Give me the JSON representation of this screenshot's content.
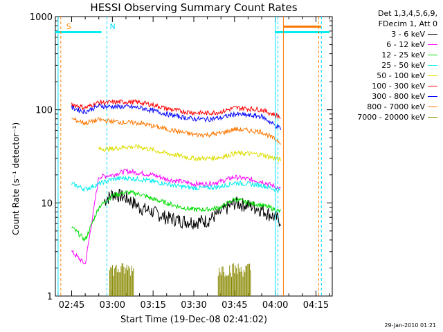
{
  "chart_data": {
    "type": "line",
    "title": "HESSI Observing Summary Count Rates",
    "xlabel": "Start Time (19-Dec-08 02:41:02)",
    "ylabel": "Count Rate (s⁻¹ detector⁻¹)",
    "yscale": "log",
    "ylim": [
      1,
      1000
    ],
    "yticks": [
      "1",
      "10",
      "100",
      "1000"
    ],
    "xlim": [
      "02:39",
      "04:21"
    ],
    "xticks": [
      "02:45",
      "03:00",
      "03:15",
      "03:30",
      "03:45",
      "04:00",
      "04:15"
    ],
    "x": [
      "02:42",
      "02:45",
      "02:50",
      "02:55",
      "03:00",
      "03:05",
      "03:10",
      "03:15",
      "03:20",
      "03:25",
      "03:30",
      "03:35",
      "03:40",
      "03:45",
      "03:50",
      "03:55",
      "04:00",
      "04:02"
    ],
    "series": [
      {
        "name": "3 - 6 keV",
        "color": "#000000",
        "values": [
          null,
          null,
          null,
          null,
          null,
          null,
          null,
          null,
          null,
          null,
          null,
          null,
          null,
          null,
          null,
          null,
          null,
          null
        ],
        "segments": [
          {
            "x": [
              "02:57",
              "03:00",
              "03:03",
              "03:06",
              "03:10",
              "03:15",
              "03:20",
              "03:25",
              "03:30",
              "03:35",
              "03:40",
              "03:45",
              "03:50",
              "03:55",
              "04:00",
              "04:02"
            ],
            "values": [
              10.5,
              12.5,
              12,
              11,
              9,
              8,
              7,
              6.5,
              6.3,
              6.5,
              8,
              10,
              9.5,
              8.5,
              7,
              6.5
            ]
          }
        ]
      },
      {
        "name": "6 - 12 keV",
        "color": "#ff00ff",
        "values": [
          null,
          3,
          2.2,
          19,
          20,
          22,
          21,
          20,
          18,
          17,
          16,
          16,
          17,
          19,
          18,
          17,
          15,
          14
        ]
      },
      {
        "name": "12 - 25 keV",
        "color": "#00dd00",
        "values": [
          null,
          5.5,
          4,
          9,
          12,
          13,
          12.5,
          11,
          10,
          9,
          8.5,
          8.5,
          9,
          11,
          10,
          9.5,
          8.5,
          8
        ]
      },
      {
        "name": "25 - 50 keV",
        "color": "#00eeee",
        "values": [
          null,
          16,
          14,
          16,
          18,
          18.5,
          18,
          17,
          16,
          15,
          14.5,
          14.5,
          15,
          16.5,
          16,
          15.5,
          14,
          13.5
        ]
      },
      {
        "name": "50 - 100 keV",
        "color": "#dddd00",
        "values": [
          null,
          null,
          null,
          38,
          38,
          40,
          40,
          37,
          34,
          32,
          30,
          30,
          31,
          34,
          34,
          33,
          30,
          29
        ]
      },
      {
        "name": "100 - 300 keV",
        "color": "#ff0000",
        "values": [
          null,
          115,
          105,
          120,
          120,
          122,
          120,
          113,
          103,
          97,
          93,
          92,
          95,
          105,
          103,
          100,
          88,
          83
        ]
      },
      {
        "name": "300 - 800 keV",
        "color": "#0000ff",
        "values": [
          null,
          105,
          95,
          110,
          108,
          108,
          105,
          98,
          90,
          84,
          80,
          79,
          82,
          90,
          87,
          85,
          68,
          63
        ]
      },
      {
        "name": "800 - 7000 keV",
        "color": "#ff7700",
        "values": [
          null,
          80,
          72,
          78,
          75,
          73,
          72,
          67,
          62,
          58,
          54,
          54,
          56,
          62,
          60,
          58,
          48,
          45
        ]
      },
      {
        "name": "7000 - 20000 keV",
        "color": "#888800",
        "values": [
          null,
          null,
          null,
          null,
          null,
          null,
          null,
          null,
          null,
          null,
          null,
          null,
          null,
          null,
          null,
          null,
          null,
          null
        ]
      }
    ],
    "annotations": [
      {
        "label": "S",
        "at": "02:42",
        "color": "#ff8800"
      },
      {
        "label": "N",
        "at": "02:58",
        "color": "#00ddff"
      }
    ]
  },
  "legend_header": [
    "Det 1,3,4,5,6,9,",
    "FDecim 1, Att 0"
  ],
  "footer": "29-Jan-2010 01:21"
}
